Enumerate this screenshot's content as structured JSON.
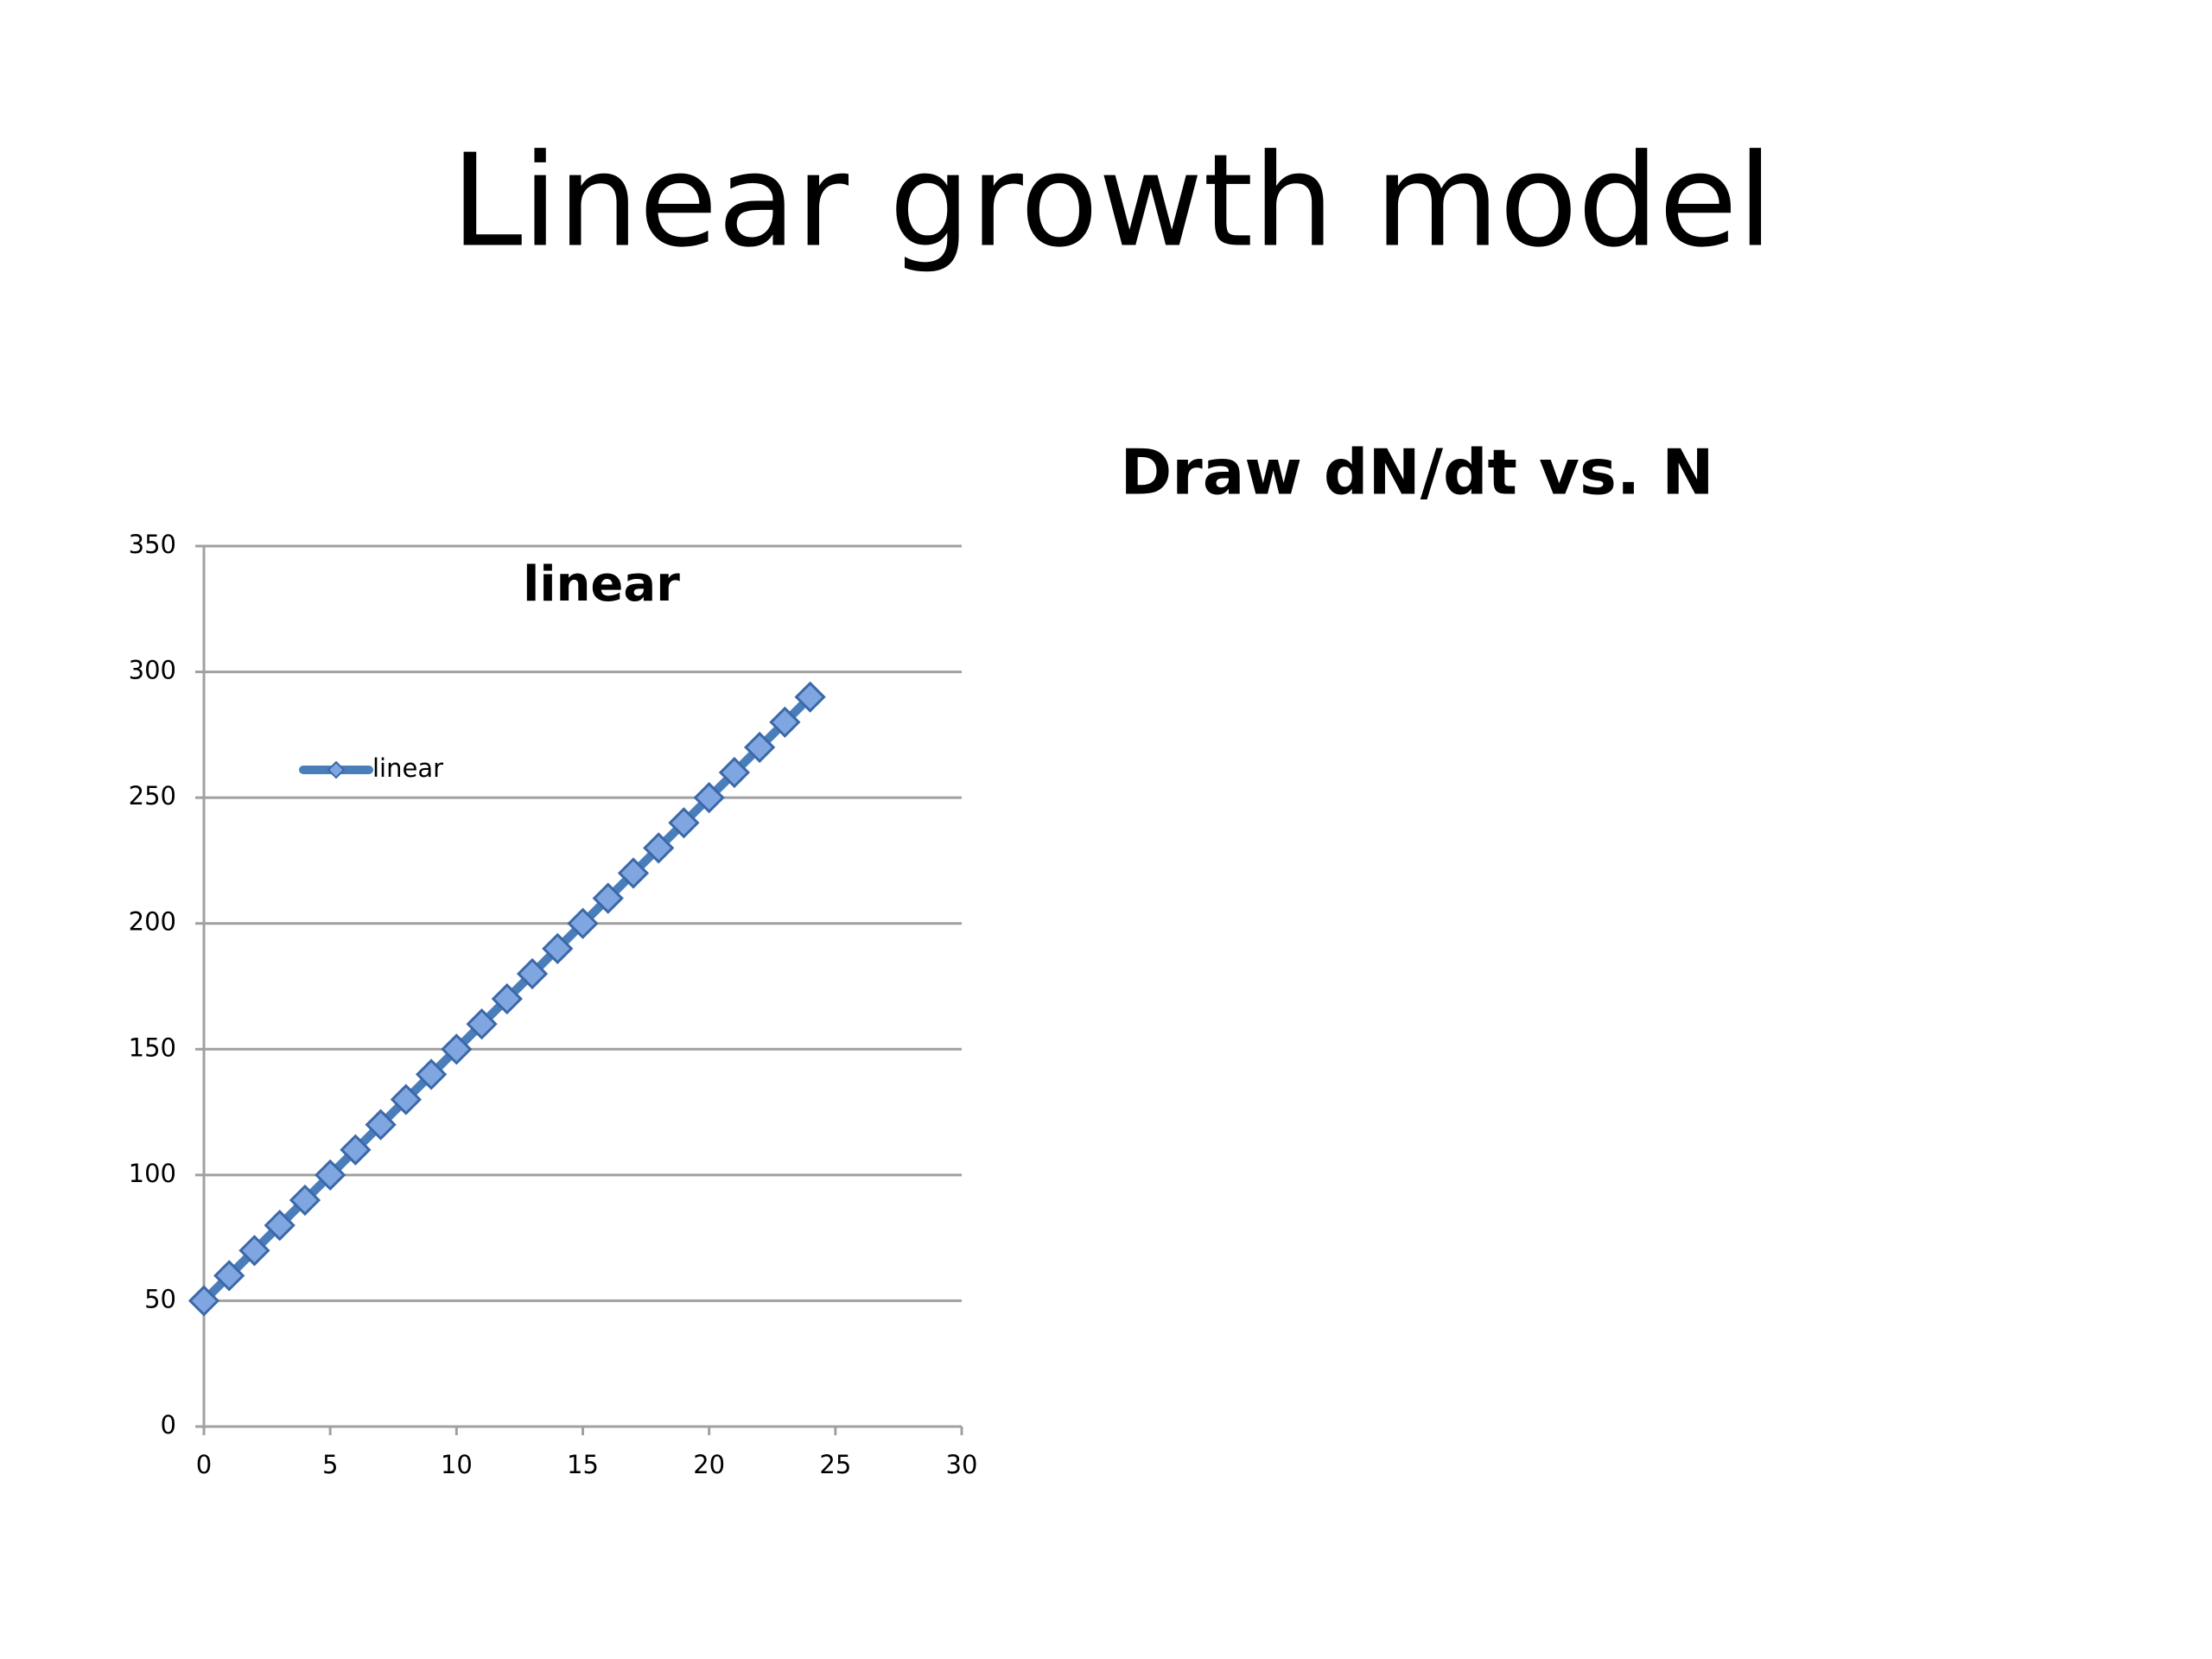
{
  "slide": {
    "title": "Linear growth model",
    "text": "Draw dN/dt vs. N"
  },
  "chart_data": {
    "type": "line",
    "title": "linear",
    "x": [
      0,
      1,
      2,
      3,
      4,
      5,
      6,
      7,
      8,
      9,
      10,
      11,
      12,
      13,
      14,
      15,
      16,
      17,
      18,
      19,
      20,
      21,
      22,
      23,
      24
    ],
    "series": [
      {
        "name": "linear",
        "color": "#4a7ebb",
        "values": [
          50,
          60,
          70,
          80,
          90,
          100,
          110,
          120,
          130,
          140,
          150,
          160,
          170,
          180,
          190,
          200,
          210,
          220,
          230,
          240,
          250,
          260,
          270,
          280,
          290
        ]
      }
    ],
    "xlim": [
      0,
      30
    ],
    "xticks": [
      0,
      5,
      10,
      15,
      20,
      25,
      30
    ],
    "ylim": [
      0,
      350
    ],
    "yticks": [
      0,
      50,
      100,
      150,
      200,
      250,
      300,
      350
    ],
    "grid": true,
    "legend": "left",
    "marker": "diamond"
  }
}
